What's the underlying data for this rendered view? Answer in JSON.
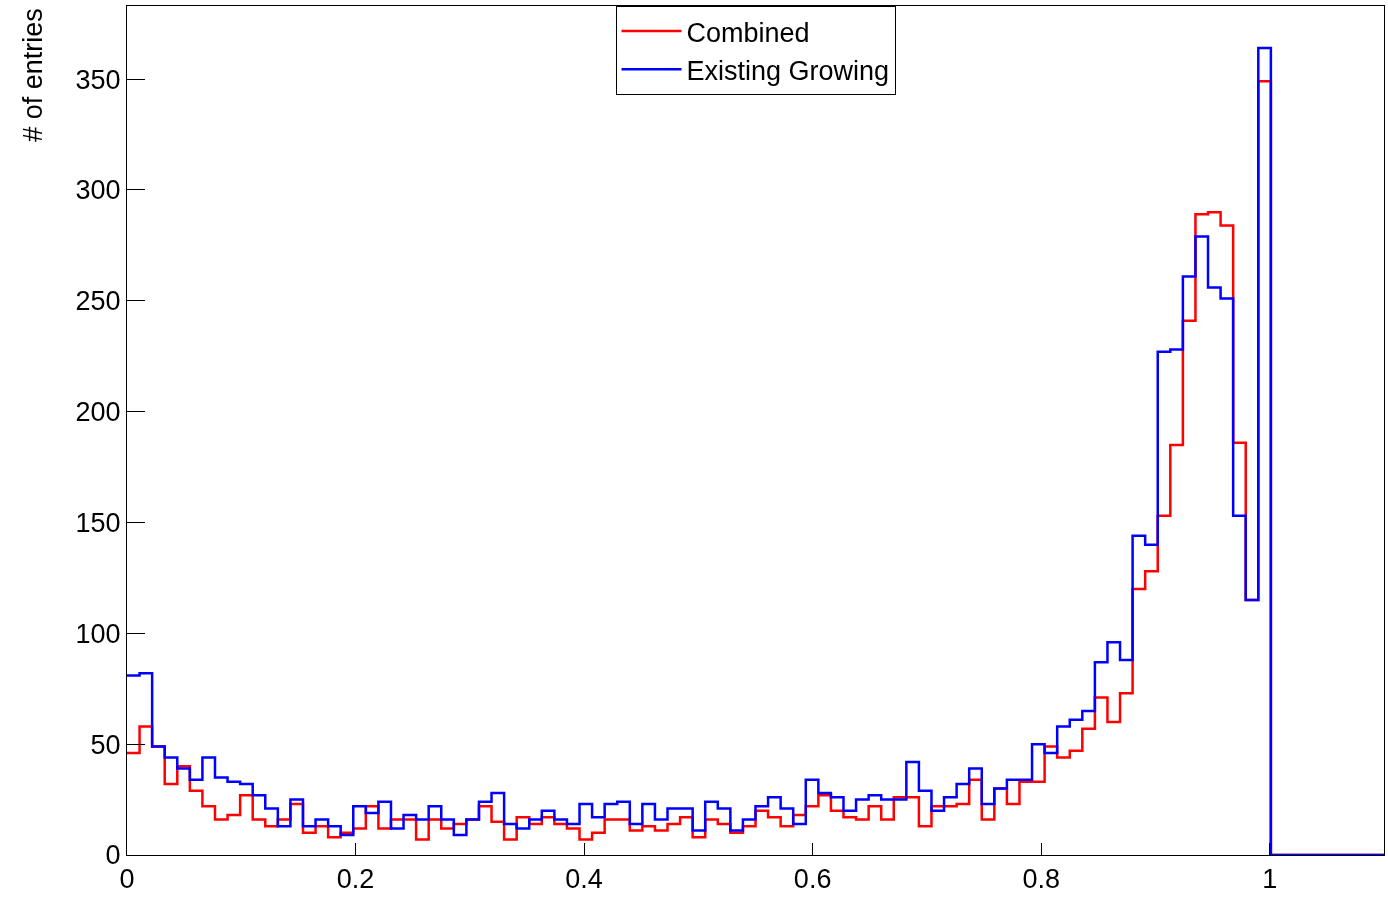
{
  "chart_data": {
    "type": "histogram",
    "ylabel": "# of entries",
    "bins": [
      0,
      0.011,
      0.022,
      0.033,
      0.044,
      0.055,
      0.066,
      0.077,
      0.088,
      0.099,
      0.11,
      0.121,
      0.132,
      0.143,
      0.154,
      0.165,
      0.176,
      0.187,
      0.198,
      0.209,
      0.22,
      0.231,
      0.242,
      0.253,
      0.264,
      0.275,
      0.286,
      0.297,
      0.308,
      0.319,
      0.33,
      0.341,
      0.352,
      0.363,
      0.374,
      0.385,
      0.396,
      0.407,
      0.418,
      0.429,
      0.44,
      0.451,
      0.462,
      0.473,
      0.484,
      0.495,
      0.506,
      0.517,
      0.528,
      0.539,
      0.55,
      0.561,
      0.572,
      0.583,
      0.594,
      0.605,
      0.616,
      0.627,
      0.638,
      0.649,
      0.66,
      0.671,
      0.682,
      0.693,
      0.704,
      0.715,
      0.726,
      0.737,
      0.748,
      0.759,
      0.77,
      0.781,
      0.792,
      0.803,
      0.814,
      0.825,
      0.836,
      0.847,
      0.858,
      0.869,
      0.88,
      0.891,
      0.902,
      0.913,
      0.924,
      0.935,
      0.946,
      0.957,
      0.968,
      0.979,
      0.99,
      1.001,
      1.012,
      1.023,
      1.034,
      1.045,
      1.056,
      1.067,
      1.078,
      1.089,
      1.1
    ],
    "series": [
      {
        "name": "Combined",
        "color": "#ff0000",
        "values": [
          46,
          58,
          49,
          32,
          40,
          29,
          22,
          16,
          18,
          27,
          16,
          13,
          16,
          23,
          10,
          13,
          8,
          10,
          12,
          22,
          12,
          16,
          16,
          7,
          16,
          12,
          14,
          16,
          22,
          15,
          7,
          17,
          14,
          17,
          14,
          12,
          7,
          10,
          16,
          16,
          11,
          13,
          11,
          14,
          17,
          8,
          16,
          14,
          10,
          13,
          20,
          17,
          13,
          18,
          22,
          27,
          20,
          17,
          16,
          22,
          16,
          26,
          26,
          13,
          22,
          22,
          23,
          34,
          16,
          30,
          23,
          33,
          33,
          49,
          44,
          47,
          57,
          71,
          60,
          73,
          120,
          128,
          153,
          185,
          241,
          289,
          290,
          284,
          186,
          115,
          349,
          0,
          0,
          0,
          0,
          0,
          0,
          0,
          0,
          0
        ]
      },
      {
        "name": "Existing Growing",
        "color": "#0000ff",
        "values": [
          81,
          82,
          49,
          44,
          39,
          34,
          44,
          35,
          33,
          32,
          27,
          21,
          13,
          25,
          13,
          16,
          13,
          9,
          22,
          19,
          24,
          12,
          18,
          16,
          22,
          16,
          9,
          16,
          24,
          28,
          14,
          12,
          16,
          20,
          16,
          14,
          23,
          17,
          23,
          24,
          14,
          23,
          16,
          21,
          21,
          11,
          24,
          21,
          11,
          16,
          22,
          26,
          21,
          14,
          34,
          28,
          26,
          20,
          25,
          27,
          25,
          25,
          42,
          29,
          20,
          26,
          32,
          39,
          23,
          30,
          34,
          34,
          50,
          46,
          58,
          61,
          65,
          87,
          96,
          88,
          144,
          140,
          227,
          228,
          261,
          279,
          256,
          251,
          153,
          115,
          364,
          0,
          0,
          0,
          0,
          0,
          0,
          0,
          0,
          0
        ]
      }
    ],
    "xlim": [
      0,
      1.1
    ],
    "xticks": [
      0,
      0.2,
      0.4,
      0.6,
      0.8,
      1
    ],
    "ylim": [
      0,
      383
    ],
    "yticks": [
      0,
      50,
      100,
      150,
      200,
      250,
      300,
      350
    ],
    "legend": "top"
  }
}
